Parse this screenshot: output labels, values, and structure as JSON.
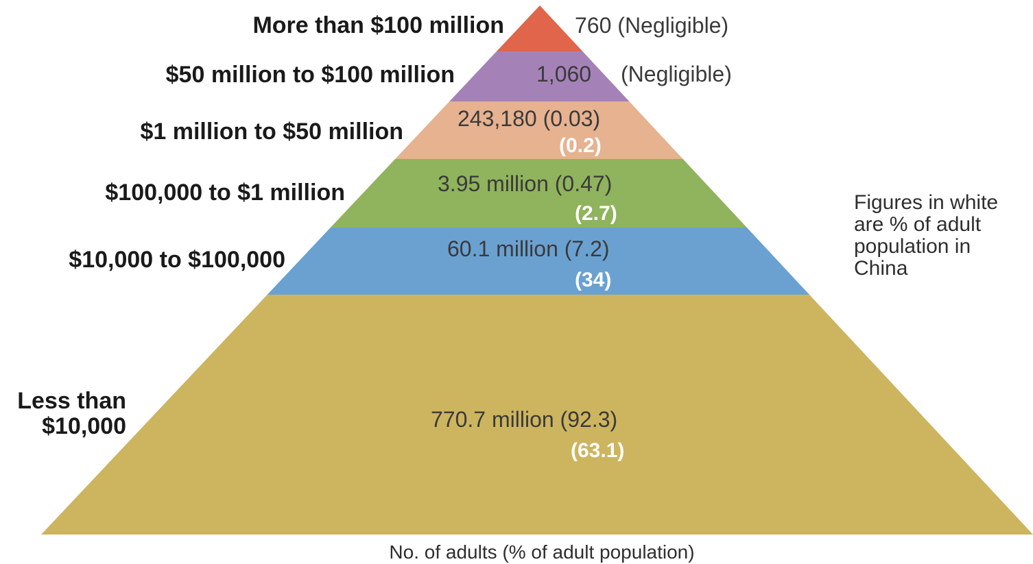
{
  "chart_data": {
    "type": "pyramid",
    "xlabel": "No. of adults (% of adult population)",
    "note": [
      "Figures in white",
      "are % of adult",
      "population in",
      "China"
    ],
    "tiers": [
      {
        "category": "More than $100 million",
        "value": "760 (Negligible)",
        "share": "",
        "color": "#e0654a"
      },
      {
        "category": "$50 million to $100 million",
        "value": "1,060",
        "value_suffix": "(Negligible)",
        "share": "",
        "color": "#a482b8"
      },
      {
        "category": "$1 million to $50 million",
        "value": "243,180 (0.03)",
        "share": "(0.2)",
        "color": "#e6b290"
      },
      {
        "category": "$100,000 to $1 million",
        "value": "3.95 million (0.47)",
        "share": "(2.7)",
        "color": "#90b35d"
      },
      {
        "category": "$10,000 to $100,000",
        "value": "60.1 million (7.2)",
        "share": "(34)",
        "color": "#6aa1d1"
      },
      {
        "category_lines": [
          "Less than",
          "$10,000"
        ],
        "value": "770.7 million (92.3)",
        "share": "(63.1)",
        "color": "#cdb45f"
      }
    ]
  }
}
